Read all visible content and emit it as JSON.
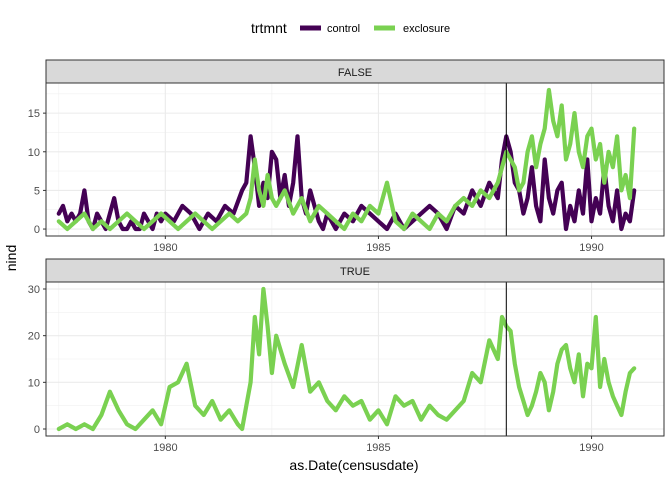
{
  "chart_data": {
    "type": "line",
    "facet_by": "",
    "xlabel": "as.Date(censusdate)",
    "ylabel": "nind",
    "legend": {
      "title": "trtmnt",
      "position": "top",
      "entries": [
        {
          "name": "control",
          "color": "#440154"
        },
        {
          "name": "exclosure",
          "color": "#7AD151"
        }
      ]
    },
    "vline_x": 1988.0,
    "xlim": [
      1977.2,
      1991.7
    ],
    "x_ticks": [
      1980,
      1985,
      1990
    ],
    "x_tick_labels": [
      "1980",
      "1985",
      "1990"
    ],
    "grid": true,
    "panels": [
      {
        "strip": "FALSE",
        "ylim": [
          -0.9,
          18.9
        ],
        "y_ticks": [
          0,
          5,
          10,
          15
        ],
        "y_tick_labels": [
          "0",
          "5",
          "10",
          "15"
        ],
        "series": [
          {
            "name": "control",
            "x": [
              1977.5,
              1977.6,
              1977.7,
              1977.8,
              1977.9,
              1978.0,
              1978.1,
              1978.2,
              1978.3,
              1978.4,
              1978.5,
              1978.6,
              1978.7,
              1978.8,
              1978.9,
              1979.0,
              1979.1,
              1979.2,
              1979.3,
              1979.4,
              1979.5,
              1979.6,
              1979.7,
              1979.8,
              1979.9,
              1980.0,
              1980.2,
              1980.4,
              1980.6,
              1980.8,
              1981.0,
              1981.2,
              1981.4,
              1981.6,
              1981.8,
              1981.9,
              1982.0,
              1982.1,
              1982.2,
              1982.3,
              1982.4,
              1982.5,
              1982.6,
              1982.7,
              1982.8,
              1982.9,
              1983.0,
              1983.1,
              1983.2,
              1983.3,
              1983.4,
              1983.5,
              1983.6,
              1983.7,
              1983.8,
              1984.0,
              1984.2,
              1984.4,
              1984.6,
              1984.8,
              1985.0,
              1985.2,
              1985.4,
              1985.6,
              1985.8,
              1986.0,
              1986.2,
              1986.4,
              1986.6,
              1986.8,
              1987.0,
              1987.2,
              1987.4,
              1987.6,
              1987.8,
              1987.9,
              1988.0,
              1988.1,
              1988.2,
              1988.3,
              1988.4,
              1988.5,
              1988.6,
              1988.7,
              1988.8,
              1988.9,
              1989.0,
              1989.1,
              1989.2,
              1989.3,
              1989.4,
              1989.5,
              1989.6,
              1989.7,
              1989.8,
              1989.9,
              1990.0,
              1990.1,
              1990.2,
              1990.3,
              1990.4,
              1990.5,
              1990.6,
              1990.7,
              1990.8,
              1990.9,
              1991.0
            ],
            "values": [
              2,
              3,
              1,
              2,
              1,
              2,
              5,
              1,
              0,
              2,
              1,
              0,
              2,
              4,
              1,
              0,
              0,
              1,
              0,
              0,
              2,
              1,
              0,
              2,
              1,
              2,
              1,
              3,
              2,
              0,
              2,
              1,
              3,
              2,
              5,
              6,
              12,
              8,
              3,
              6,
              4,
              10,
              9,
              4,
              7,
              3,
              6,
              12,
              4,
              2,
              5,
              3,
              1,
              0,
              2,
              0,
              2,
              1,
              3,
              2,
              1,
              0,
              2,
              0,
              1,
              2,
              3,
              2,
              0,
              3,
              2,
              5,
              3,
              6,
              4,
              9,
              12,
              10,
              6,
              5,
              2,
              4,
              8,
              3,
              1,
              9,
              4,
              2,
              5,
              6,
              0,
              3,
              1,
              5,
              2,
              9,
              1,
              4,
              2,
              8,
              3,
              1,
              5,
              0,
              2,
              1,
              5
            ]
          },
          {
            "name": "exclosure",
            "x": [
              1977.5,
              1977.7,
              1977.9,
              1978.1,
              1978.3,
              1978.5,
              1978.7,
              1978.9,
              1979.1,
              1979.3,
              1979.5,
              1979.7,
              1979.9,
              1980.1,
              1980.3,
              1980.5,
              1980.7,
              1980.9,
              1981.1,
              1981.3,
              1981.5,
              1981.7,
              1981.9,
              1982.0,
              1982.1,
              1982.2,
              1982.3,
              1982.4,
              1982.5,
              1982.6,
              1982.8,
              1983.0,
              1983.2,
              1983.4,
              1983.6,
              1983.8,
              1984.0,
              1984.2,
              1984.4,
              1984.6,
              1984.8,
              1985.0,
              1985.2,
              1985.4,
              1985.6,
              1985.8,
              1986.0,
              1986.2,
              1986.4,
              1986.6,
              1986.8,
              1987.0,
              1987.2,
              1987.4,
              1987.6,
              1987.8,
              1988.0,
              1988.1,
              1988.2,
              1988.3,
              1988.4,
              1988.5,
              1988.6,
              1988.7,
              1988.8,
              1988.9,
              1989.0,
              1989.1,
              1989.2,
              1989.3,
              1989.4,
              1989.5,
              1989.6,
              1989.7,
              1989.8,
              1989.9,
              1990.0,
              1990.1,
              1990.2,
              1990.3,
              1990.4,
              1990.5,
              1990.6,
              1990.7,
              1990.8,
              1990.9,
              1991.0
            ],
            "values": [
              1,
              0,
              1,
              2,
              0,
              1,
              0,
              1,
              2,
              1,
              0,
              1,
              2,
              1,
              0,
              1,
              2,
              1,
              0,
              1,
              2,
              1,
              2,
              4,
              9,
              5,
              3,
              7,
              4,
              3,
              5,
              2,
              4,
              1,
              3,
              2,
              1,
              0,
              2,
              1,
              3,
              2,
              6,
              1,
              0,
              2,
              1,
              0,
              2,
              1,
              3,
              4,
              3,
              5,
              4,
              6,
              10,
              9,
              8,
              5,
              6,
              10,
              12,
              8,
              11,
              13,
              18,
              14,
              12,
              16,
              9,
              11,
              15,
              10,
              8,
              12,
              13,
              9,
              11,
              6,
              10,
              8,
              12,
              5,
              7,
              4,
              13
            ]
          }
        ]
      },
      {
        "strip": "TRUE",
        "ylim": [
          -1.5,
          31.5
        ],
        "y_ticks": [
          0,
          10,
          20,
          30
        ],
        "y_tick_labels": [
          "0",
          "10",
          "20",
          "30"
        ],
        "series": [
          {
            "name": "exclosure",
            "x": [
              1977.5,
              1977.7,
              1977.9,
              1978.1,
              1978.3,
              1978.5,
              1978.7,
              1978.9,
              1979.1,
              1979.3,
              1979.5,
              1979.7,
              1979.9,
              1980.1,
              1980.3,
              1980.5,
              1980.7,
              1980.9,
              1981.1,
              1981.3,
              1981.5,
              1981.7,
              1981.8,
              1981.9,
              1982.0,
              1982.1,
              1982.2,
              1982.3,
              1982.4,
              1982.5,
              1982.6,
              1982.8,
              1983.0,
              1983.2,
              1983.4,
              1983.6,
              1983.8,
              1984.0,
              1984.2,
              1984.4,
              1984.6,
              1984.8,
              1985.0,
              1985.2,
              1985.4,
              1985.6,
              1985.8,
              1986.0,
              1986.2,
              1986.4,
              1986.6,
              1986.8,
              1987.0,
              1987.2,
              1987.4,
              1987.6,
              1987.8,
              1987.9,
              1988.0,
              1988.1,
              1988.2,
              1988.3,
              1988.4,
              1988.5,
              1988.6,
              1988.7,
              1988.8,
              1988.9,
              1989.0,
              1989.1,
              1989.2,
              1989.3,
              1989.4,
              1989.5,
              1989.6,
              1989.7,
              1989.8,
              1989.9,
              1990.0,
              1990.1,
              1990.2,
              1990.3,
              1990.4,
              1990.5,
              1990.6,
              1990.7,
              1990.8,
              1990.9,
              1991.0
            ],
            "values": [
              0,
              1,
              0,
              1,
              0,
              3,
              8,
              4,
              1,
              0,
              2,
              4,
              1,
              9,
              10,
              14,
              5,
              3,
              6,
              2,
              4,
              1,
              0,
              5,
              10,
              24,
              16,
              30,
              22,
              12,
              20,
              14,
              9,
              18,
              8,
              10,
              6,
              4,
              7,
              5,
              6,
              2,
              4,
              1,
              7,
              5,
              6,
              2,
              5,
              3,
              2,
              4,
              6,
              12,
              10,
              19,
              15,
              24,
              22,
              21,
              14,
              9,
              6,
              3,
              5,
              8,
              12,
              10,
              4,
              8,
              14,
              17,
              18,
              13,
              10,
              16,
              7,
              14,
              13,
              24,
              9,
              15,
              10,
              7,
              5,
              3,
              8,
              12,
              13
            ]
          }
        ]
      }
    ]
  }
}
